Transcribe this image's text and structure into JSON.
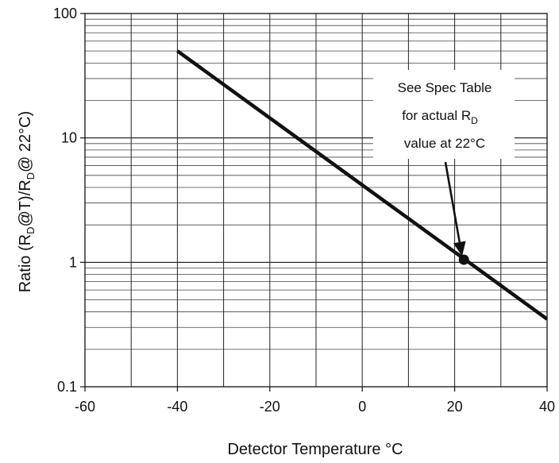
{
  "chart_data": {
    "type": "line",
    "xlabel": "Detector Temperature °C",
    "ylabel": "Ratio (R_D@T)/R_D@ 22°C)",
    "ylabel_parts": {
      "pre": "Ratio (R",
      "sub1": "D",
      "mid": "@T)/R",
      "sub2": "D",
      "post": "@ 22°C)"
    },
    "xlim": [
      -60,
      40
    ],
    "ylim": [
      0.1,
      100
    ],
    "yscale": "log",
    "grid": true,
    "x_ticks": [
      "-60",
      "-40",
      "-20",
      "0",
      "20",
      "40"
    ],
    "y_ticks": [
      "0.1",
      "1",
      "10",
      "100"
    ],
    "series": [
      {
        "x": [
          -40,
          40
        ],
        "y": [
          50,
          0.35
        ]
      }
    ],
    "marker_point": {
      "x": 22,
      "y": 1.05
    },
    "annotation": {
      "lines": [
        "See Spec Table",
        "for actual R",
        "value at 22°C"
      ],
      "subscript": "D",
      "arrow_from": {
        "x": 18,
        "y": 6.4
      },
      "arrow_to": {
        "x": 21.6,
        "y": 1.12
      }
    }
  }
}
